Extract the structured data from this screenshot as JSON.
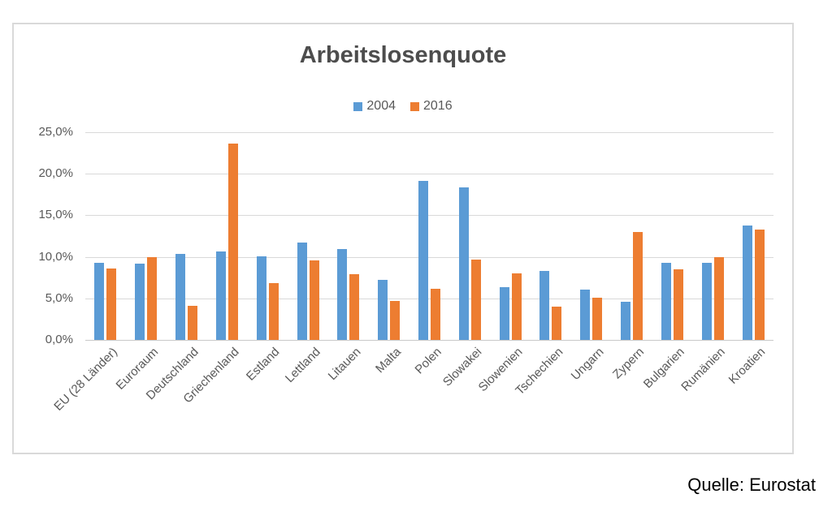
{
  "chart_data": {
    "type": "bar",
    "title": "Arbeitslosenquote",
    "source": "Quelle: Eurostat",
    "legend_position": "top-center",
    "grid": true,
    "categories": [
      "EU (28 Länder)",
      "Euroraum",
      "Deutschland",
      "Griechenland",
      "Estland",
      "Lettland",
      "Litauen",
      "Malta",
      "Polen",
      "Slowakei",
      "Slowenien",
      "Tschechien",
      "Ungarn",
      "Zypern",
      "Bulgarien",
      "Rumänien",
      "Kroatien"
    ],
    "series": [
      {
        "name": "2004",
        "color": "#5B9BD5",
        "values": [
          9.3,
          9.2,
          10.4,
          10.6,
          10.1,
          11.7,
          10.9,
          7.2,
          19.1,
          18.4,
          6.3,
          8.3,
          6.1,
          4.6,
          9.3,
          9.3,
          13.8
        ]
      },
      {
        "name": "2016",
        "color": "#ED7D31",
        "values": [
          8.6,
          10.0,
          4.1,
          23.6,
          6.8,
          9.6,
          7.9,
          4.7,
          6.2,
          9.7,
          8.0,
          4.0,
          5.1,
          13.0,
          8.5,
          10.0,
          13.3
        ]
      }
    ],
    "y_axis": {
      "min": 0,
      "max": 25,
      "step": 5,
      "tick_labels": [
        "0,0%",
        "5,0%",
        "10,0%",
        "15,0%",
        "20,0%",
        "25,0%"
      ],
      "unit": "percent"
    }
  },
  "colors": {
    "gridline": "#D9D9D9",
    "axis_text": "#595959",
    "title_text": "#4D4D4D",
    "frame_border": "#D9D9D9",
    "source_text": "#000000"
  }
}
